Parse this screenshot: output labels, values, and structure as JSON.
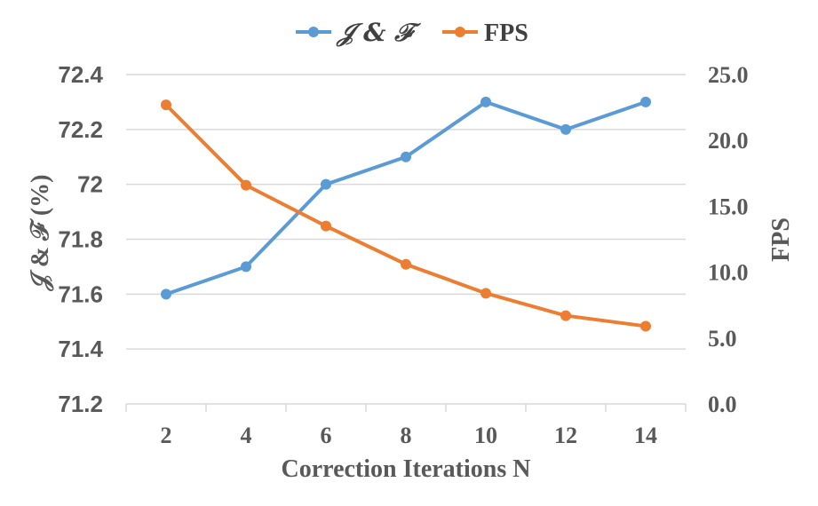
{
  "chart_data": {
    "type": "line",
    "title": "",
    "xlabel": "Correction Iterations N",
    "ylabel_left": "𝒥 & ℱ  (%)",
    "ylabel_right": "FPS",
    "categories": [
      "2",
      "4",
      "6",
      "8",
      "10",
      "12",
      "14"
    ],
    "x": [
      2,
      4,
      6,
      8,
      10,
      12,
      14
    ],
    "ylim_left": [
      71.2,
      72.4
    ],
    "ylim_right": [
      0.0,
      25.0
    ],
    "yticks_left": [
      "71.2",
      "71.4",
      "71.6",
      "71.8",
      "72",
      "72.2",
      "72.4"
    ],
    "yticks_right": [
      "0.0",
      "5.0",
      "10.0",
      "15.0",
      "20.0",
      "25.0"
    ],
    "grid": true,
    "legend_position": "top-center",
    "series": [
      {
        "name": "𝒥 & ℱ",
        "axis": "left",
        "color": "#5b9bd5",
        "values": [
          71.6,
          71.7,
          72.0,
          72.1,
          72.3,
          72.2,
          72.3
        ]
      },
      {
        "name": "FPS",
        "axis": "right",
        "color": "#ed7d31",
        "values": [
          22.7,
          16.6,
          13.5,
          10.6,
          8.4,
          6.7,
          5.9
        ]
      }
    ]
  }
}
